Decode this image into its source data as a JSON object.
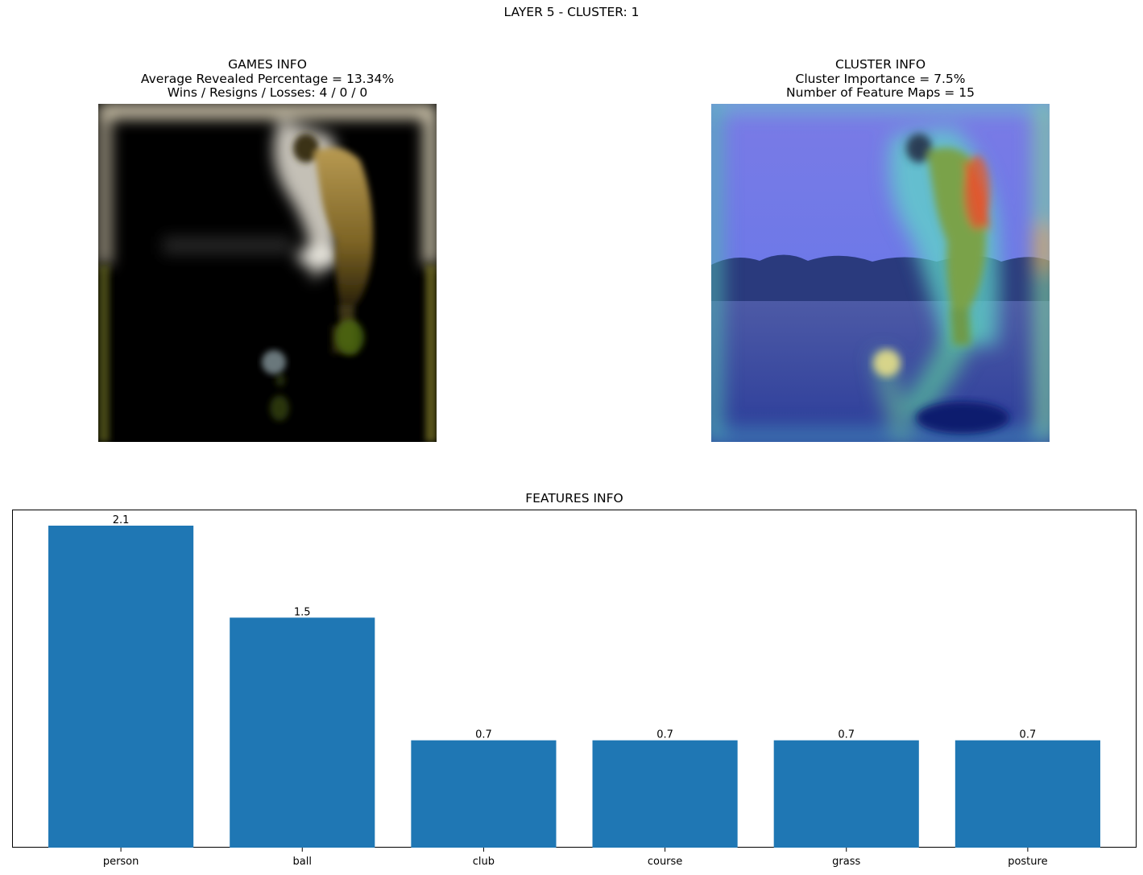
{
  "figure": {
    "suptitle": "LAYER 5 - CLUSTER: 1"
  },
  "games_info": {
    "title": "GAMES INFO",
    "line1": "Average Revealed Percentage = 13.34%",
    "line2": "Wins / Resigns / Losses: 4 / 0 / 0"
  },
  "cluster_info": {
    "title": "CLUSTER INFO",
    "line1": "Cluster Importance = 7.5%",
    "line2": "Number of Feature Maps = 15"
  },
  "chart_data": {
    "type": "bar",
    "title": "FEATURES INFO",
    "categories": [
      "person",
      "ball",
      "club",
      "course",
      "grass",
      "posture"
    ],
    "values": [
      2.1,
      1.5,
      0.7,
      0.7,
      0.7,
      0.7
    ],
    "value_labels": [
      "2.1",
      "1.5",
      "0.7",
      "0.7",
      "0.7",
      "0.7"
    ],
    "xlabel": "",
    "ylabel": "",
    "ylim": [
      0,
      2.205
    ],
    "yticks_visible": false,
    "grid": false,
    "bar_color": "#1f77b4"
  }
}
